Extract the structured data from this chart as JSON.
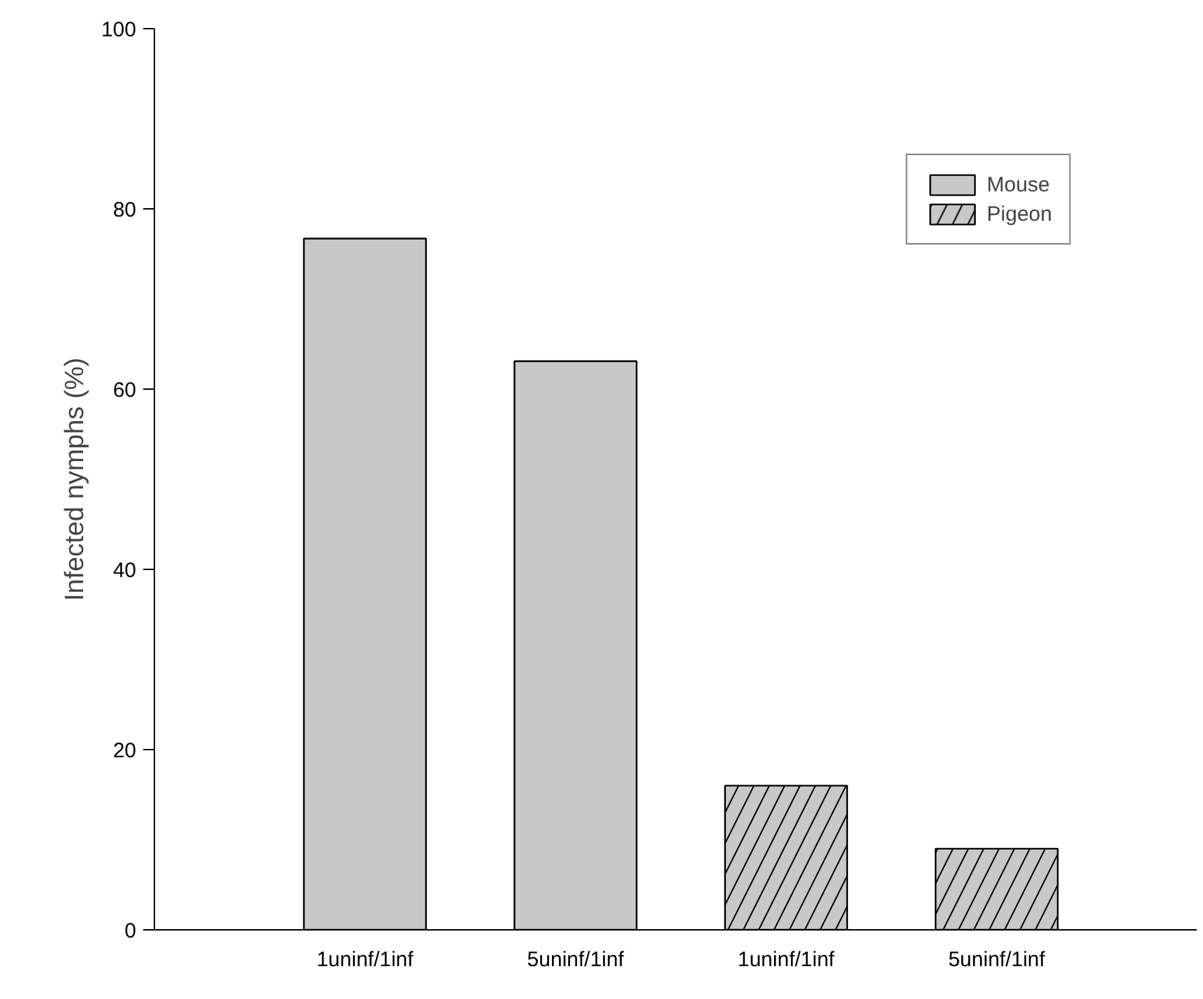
{
  "chart_data": {
    "type": "bar",
    "ylabel": "Infected nymphs (%)",
    "categories": [
      "1uninf/1inf",
      "5uninf/1inf",
      "1uninf/1inf",
      "5uninf/1inf"
    ],
    "series": [
      {
        "name": "Mouse",
        "color": "#c8c8c8",
        "values": [
          76.7,
          63.1,
          null,
          null
        ]
      },
      {
        "name": "Pigeon",
        "color": "#c8c8c8",
        "values": [
          null,
          null,
          16.0,
          9.0
        ]
      }
    ],
    "ylim": [
      0,
      100
    ],
    "yticks": [
      0,
      20,
      40,
      60,
      80,
      100
    ],
    "grid": false,
    "legend": "top right"
  }
}
